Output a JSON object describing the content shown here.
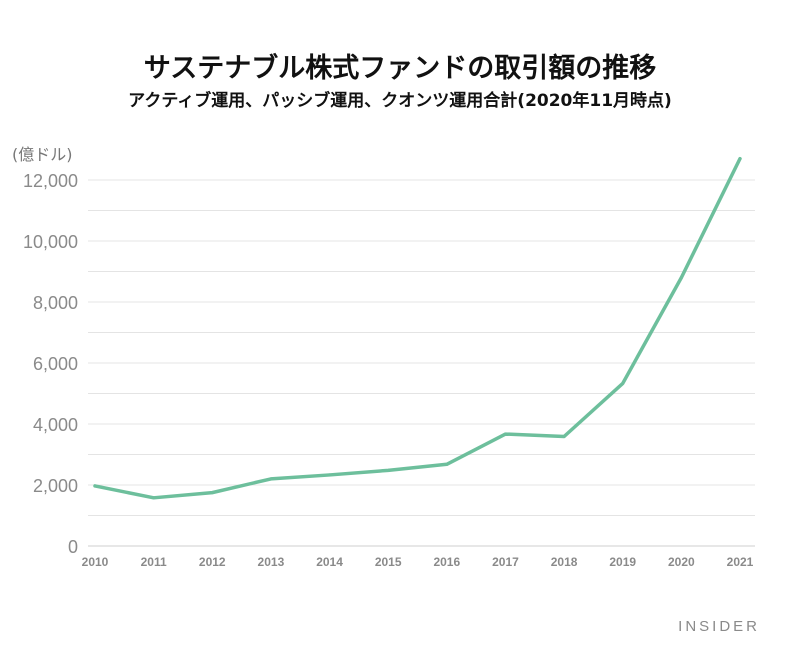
{
  "chart_data": {
    "type": "line",
    "title": "サステナブル株式ファンドの取引額の推移",
    "subtitle": "アクティブ運用、パッシブ運用、クオンツ運用合計(2020年11月時点)",
    "unit_label": "(億ドル)",
    "x": [
      "2010",
      "2011",
      "2012",
      "2013",
      "2014",
      "2015",
      "2016",
      "2017",
      "2018",
      "2019",
      "2020",
      "2021"
    ],
    "series": [
      {
        "values": [
          1970,
          1580,
          1750,
          2200,
          2330,
          2480,
          2680,
          3670,
          3590,
          5330,
          8800,
          12700
        ]
      }
    ],
    "yticks": [
      "0",
      "2,000",
      "4,000",
      "6,000",
      "8,000",
      "10,000",
      "12,000"
    ],
    "ylim": [
      0,
      13000
    ],
    "grid": true,
    "line_color": "#6dbf9c"
  },
  "source_logo": "INSIDER"
}
